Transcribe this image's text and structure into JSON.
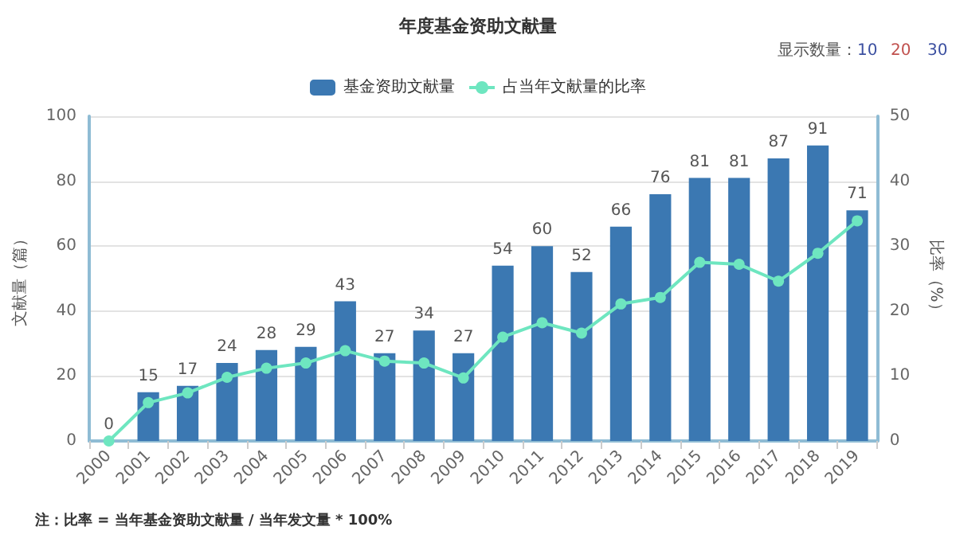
{
  "chart_data": {
    "type": "bar",
    "title": "年度基金资助文献量",
    "ylabel": "文献量（篇）",
    "y2label": "比率（%）",
    "annotations": [
      "显示数量：",
      "10",
      "20",
      "30",
      "注：比率 = 当年基金资助文献量 / 当年发文量 * 100%"
    ],
    "categories": [
      "2000",
      "2001",
      "2002",
      "2003",
      "2004",
      "2005",
      "2006",
      "2007",
      "2008",
      "2009",
      "2010",
      "2011",
      "2012",
      "2013",
      "2014",
      "2015",
      "2016",
      "2017",
      "2018",
      "2019"
    ],
    "series": [
      {
        "name": "基金资助文献量",
        "color": "#3b78b2",
        "values": [
          0,
          15,
          17,
          24,
          28,
          29,
          43,
          27,
          34,
          27,
          54,
          60,
          52,
          66,
          76,
          81,
          81,
          87,
          91,
          71
        ],
        "value_labels": [
          "0",
          "15",
          "17",
          "24",
          "28",
          "29",
          "43",
          "27",
          "34",
          "27",
          "54",
          "60",
          "52",
          "66",
          "76",
          "81",
          "81",
          "87",
          "91",
          "71"
        ]
      },
      {
        "name": "占当年文献量的比率",
        "type": "line",
        "axis": "y2",
        "color": "#6ee6c0",
        "values": [
          0,
          5.9,
          7.4,
          9.8,
          11.2,
          12.0,
          13.9,
          12.3,
          12.0,
          9.7,
          16.0,
          18.2,
          16.6,
          21.1,
          22.1,
          27.5,
          27.2,
          24.6,
          28.9,
          33.9
        ]
      }
    ],
    "ylim": [
      0,
      100
    ],
    "yticks": [
      0,
      20,
      40,
      60,
      80,
      100
    ],
    "y2lim": [
      0,
      50
    ],
    "y2ticks": [
      0,
      10,
      20,
      30,
      40,
      50
    ],
    "grid": "y",
    "legend": "top",
    "marker": "circle",
    "line_style": "solid"
  }
}
